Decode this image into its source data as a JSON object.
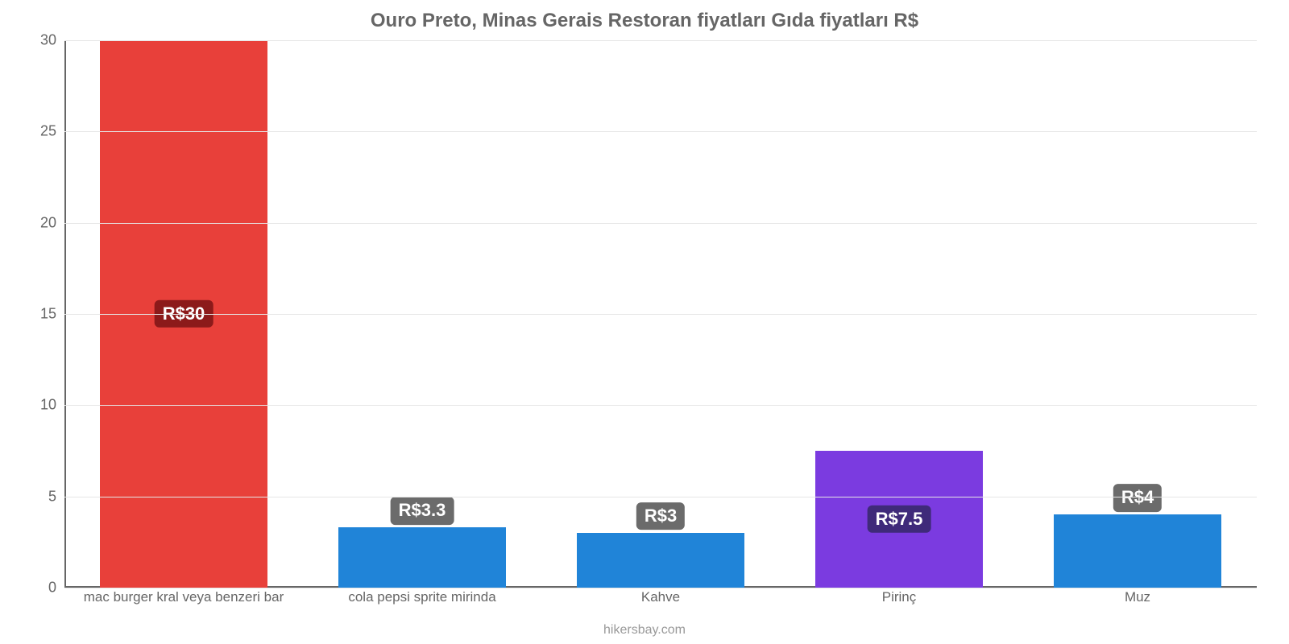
{
  "chart": {
    "type": "bar",
    "title": "Ouro Preto, Minas Gerais Restoran fiyatları Gıda fiyatları R$",
    "title_fontsize": 24,
    "title_color": "#666666",
    "background_color": "#ffffff",
    "grid_color": "#e6e6e6",
    "axis_color": "#666666",
    "tick_label_fontsize": 18,
    "tick_label_color": "#666666",
    "x_label_fontsize": 17,
    "x_label_color": "#666666",
    "ylim": [
      0,
      30
    ],
    "yticks": [
      0,
      5,
      10,
      15,
      20,
      25,
      30
    ],
    "bar_width_pct": 70,
    "categories": [
      "mac burger kral veya benzeri bar",
      "cola pepsi sprite mirinda",
      "Kahve",
      "Pirinç",
      "Muz"
    ],
    "values": [
      30,
      3.3,
      3,
      7.5,
      4
    ],
    "value_labels": [
      "R$30",
      "R$3.3",
      "R$3",
      "R$7.5",
      "R$4"
    ],
    "bar_colors": [
      "#e8403a",
      "#2084d8",
      "#2084d8",
      "#7b3be0",
      "#2084d8"
    ],
    "value_label_text_color": "#ffffff",
    "value_label_fontsize": 22,
    "value_label_bg_colors": [
      "#8c1a1a",
      "#6b6b6b",
      "#6b6b6b",
      "#3f2a7a",
      "#6b6b6b"
    ],
    "value_label_outside_threshold": 5,
    "credit": "hikersbay.com",
    "credit_fontsize": 16,
    "credit_color": "#999999"
  }
}
